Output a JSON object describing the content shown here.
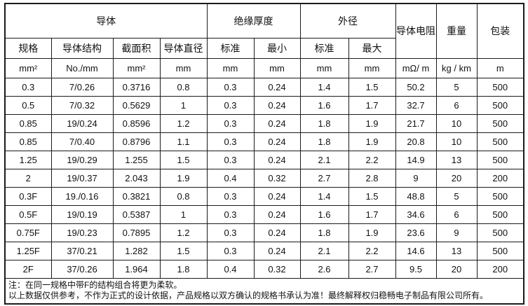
{
  "colors": {
    "border": "#1a1a1a",
    "text": "#111111",
    "background": "#ffffff"
  },
  "table": {
    "groups": [
      {
        "label": "导体",
        "colspan": 4
      },
      {
        "label": "绝缘厚度",
        "colspan": 2
      },
      {
        "label": "外径",
        "colspan": 2
      },
      {
        "label": "导体电阻",
        "rowspan": 2
      },
      {
        "label": "重量",
        "rowspan": 2
      },
      {
        "label": "包装",
        "rowspan": 2
      }
    ],
    "sub_headers": [
      "规格",
      "导体结构",
      "截面积",
      "导体直径",
      "标准",
      "最小",
      "标准",
      "最大"
    ],
    "units": [
      "mm²",
      "No./mm",
      "mm²",
      "mm",
      "mm",
      "mm",
      "mm",
      "mm",
      "mΩ/ m",
      "kg / km",
      "m"
    ],
    "rows": [
      [
        "0.3",
        "7/0.26",
        "0.3716",
        "0.8",
        "0.3",
        "0.24",
        "1.4",
        "1.5",
        "50.2",
        "5",
        "500"
      ],
      [
        "0.5",
        "7/0.32",
        "0.5629",
        "1",
        "0.3",
        "0.24",
        "1.6",
        "1.7",
        "32.7",
        "6",
        "500"
      ],
      [
        "0.85",
        "19/0.24",
        "0.8596",
        "1.2",
        "0.3",
        "0.24",
        "1.8",
        "1.9",
        "21.7",
        "10",
        "500"
      ],
      [
        "0.85",
        "7/0.40",
        "0.8796",
        "1.1",
        "0.3",
        "0.24",
        "1.8",
        "1.9",
        "20.8",
        "10",
        "500"
      ],
      [
        "1.25",
        "19/0.29",
        "1.255",
        "1.5",
        "0.3",
        "0.24",
        "2.1",
        "2.2",
        "14.9",
        "13",
        "500"
      ],
      [
        "2",
        "19/0.37",
        "2.043",
        "1.9",
        "0.4",
        "0.32",
        "2.7",
        "2.8",
        "9",
        "20",
        "200"
      ],
      [
        "0.3F",
        "19./0.16",
        "0.3821",
        "0.8",
        "0.3",
        "0.24",
        "1.4",
        "1.5",
        "48.8",
        "5",
        "500"
      ],
      [
        "0.5F",
        "19/0.19",
        "0.5387",
        "1",
        "0.3",
        "0.24",
        "1.6",
        "1.7",
        "34.6",
        "6",
        "500"
      ],
      [
        "0.75F",
        "19/0.23",
        "0.7895",
        "1.2",
        "0.3",
        "0.24",
        "1.8",
        "1.9",
        "23.6",
        "9",
        "500"
      ],
      [
        "1.25F",
        "37/0.21",
        "1.282",
        "1.5",
        "0.3",
        "0.24",
        "2.1",
        "2.2",
        "14.6",
        "13",
        "500"
      ],
      [
        "2F",
        "37/0.26",
        "1.964",
        "1.8",
        "0.4",
        "0.32",
        "2.6",
        "2.7",
        "9.5",
        "20",
        "200"
      ]
    ],
    "notes": [
      "注：在同一规格中带F的结构组合将更为柔软。",
      "以上数据仅供参考，不作为正式的设计依据，产品规格以双方确认的规格书承认为准！最终解释权归稳畅电子制品有限公司所有。"
    ]
  }
}
